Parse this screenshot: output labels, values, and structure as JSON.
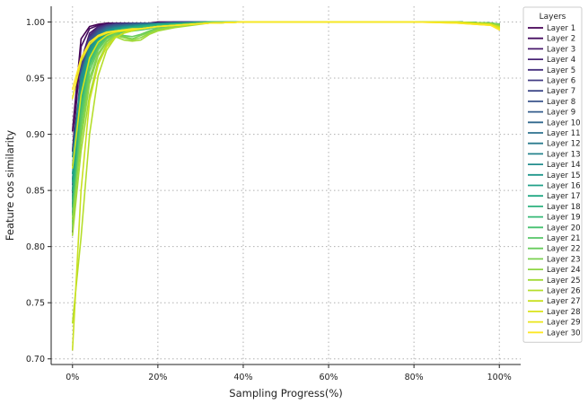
{
  "chart_data": {
    "type": "line",
    "title": "",
    "xlabel": "Sampling Progress(%)",
    "ylabel": "Feature cos similarity",
    "xlim": [
      -5,
      105
    ],
    "ylim": [
      0.695,
      1.014
    ],
    "grid": true,
    "legend_title": "Layers",
    "legend_position": "top-right, outside",
    "x_ticks": [
      0,
      20,
      40,
      60,
      80,
      100
    ],
    "x_tick_labels": [
      "0%",
      "20%",
      "40%",
      "60%",
      "80%",
      "100%"
    ],
    "y_ticks": [
      0.7,
      0.75,
      0.8,
      0.85,
      0.9,
      0.95,
      1.0
    ],
    "y_tick_labels": [
      "0.70",
      "0.75",
      "0.80",
      "0.85",
      "0.90",
      "0.95",
      "1.00"
    ],
    "x": [
      0,
      2,
      4,
      6,
      8,
      10,
      12,
      14,
      16,
      18,
      20,
      24,
      28,
      32,
      40,
      50,
      60,
      70,
      80,
      90,
      98,
      100
    ],
    "series": [
      {
        "name": "Layer 1",
        "color": "#440154",
        "values": [
          0.903,
          0.985,
          0.996,
          0.998,
          0.999,
          0.999,
          0.999,
          0.999,
          0.999,
          0.999,
          1.0,
          1.0,
          1.0,
          1.0,
          1.0,
          1.0,
          1.0,
          1.0,
          1.0,
          1.0,
          0.999,
          0.998
        ]
      },
      {
        "name": "Layer 2",
        "color": "#470e61",
        "values": [
          0.885,
          0.978,
          0.994,
          0.997,
          0.998,
          0.999,
          0.999,
          0.999,
          0.999,
          0.999,
          1.0,
          1.0,
          1.0,
          1.0,
          1.0,
          1.0,
          1.0,
          1.0,
          1.0,
          1.0,
          0.999,
          0.998
        ]
      },
      {
        "name": "Layer 3",
        "color": "#481a6c",
        "values": [
          0.848,
          0.965,
          0.99,
          0.996,
          0.998,
          0.999,
          0.999,
          0.999,
          0.999,
          0.999,
          0.999,
          1.0,
          1.0,
          1.0,
          1.0,
          1.0,
          1.0,
          1.0,
          1.0,
          1.0,
          0.999,
          0.998
        ]
      },
      {
        "name": "Layer 4",
        "color": "#482576",
        "values": [
          0.813,
          0.955,
          0.988,
          0.995,
          0.998,
          0.999,
          0.999,
          0.999,
          0.999,
          0.999,
          0.999,
          1.0,
          1.0,
          1.0,
          1.0,
          1.0,
          1.0,
          1.0,
          1.0,
          1.0,
          0.999,
          0.997
        ]
      },
      {
        "name": "Layer 5",
        "color": "#46307e",
        "values": [
          0.835,
          0.96,
          0.987,
          0.995,
          0.997,
          0.998,
          0.999,
          0.999,
          0.999,
          0.999,
          0.999,
          1.0,
          1.0,
          1.0,
          1.0,
          1.0,
          1.0,
          1.0,
          1.0,
          1.0,
          0.999,
          0.998
        ]
      },
      {
        "name": "Layer 6",
        "color": "#433d84",
        "values": [
          0.842,
          0.962,
          0.986,
          0.994,
          0.997,
          0.998,
          0.998,
          0.999,
          0.999,
          0.999,
          0.999,
          1.0,
          1.0,
          1.0,
          1.0,
          1.0,
          1.0,
          1.0,
          1.0,
          1.0,
          0.999,
          0.998
        ]
      },
      {
        "name": "Layer 7",
        "color": "#3f4889",
        "values": [
          0.85,
          0.958,
          0.985,
          0.993,
          0.996,
          0.998,
          0.998,
          0.999,
          0.999,
          0.999,
          0.999,
          1.0,
          1.0,
          1.0,
          1.0,
          1.0,
          1.0,
          1.0,
          1.0,
          1.0,
          0.999,
          0.998
        ]
      },
      {
        "name": "Layer 8",
        "color": "#3a538b",
        "values": [
          0.855,
          0.955,
          0.984,
          0.992,
          0.996,
          0.997,
          0.998,
          0.998,
          0.999,
          0.999,
          0.999,
          0.999,
          1.0,
          1.0,
          1.0,
          1.0,
          1.0,
          1.0,
          1.0,
          1.0,
          0.999,
          0.998
        ]
      },
      {
        "name": "Layer 9",
        "color": "#355e8d",
        "values": [
          0.86,
          0.952,
          0.982,
          0.991,
          0.995,
          0.997,
          0.997,
          0.998,
          0.998,
          0.999,
          0.999,
          0.999,
          1.0,
          1.0,
          1.0,
          1.0,
          1.0,
          1.0,
          1.0,
          1.0,
          0.999,
          0.998
        ]
      },
      {
        "name": "Layer 10",
        "color": "#31688e",
        "values": [
          0.845,
          0.948,
          0.98,
          0.99,
          0.995,
          0.996,
          0.997,
          0.998,
          0.998,
          0.998,
          0.999,
          0.999,
          1.0,
          1.0,
          1.0,
          1.0,
          1.0,
          1.0,
          1.0,
          1.0,
          0.999,
          0.998
        ]
      },
      {
        "name": "Layer 11",
        "color": "#2d718e",
        "values": [
          0.838,
          0.945,
          0.978,
          0.989,
          0.994,
          0.996,
          0.997,
          0.997,
          0.998,
          0.998,
          0.999,
          0.999,
          1.0,
          1.0,
          1.0,
          1.0,
          1.0,
          1.0,
          1.0,
          1.0,
          0.999,
          0.998
        ]
      },
      {
        "name": "Layer 12",
        "color": "#2a7b8e",
        "values": [
          0.83,
          0.942,
          0.976,
          0.988,
          0.993,
          0.995,
          0.996,
          0.997,
          0.998,
          0.998,
          0.998,
          0.999,
          0.999,
          1.0,
          1.0,
          1.0,
          1.0,
          1.0,
          1.0,
          1.0,
          0.999,
          0.998
        ]
      },
      {
        "name": "Layer 13",
        "color": "#26848e",
        "values": [
          0.872,
          0.95,
          0.978,
          0.988,
          0.993,
          0.995,
          0.996,
          0.997,
          0.997,
          0.998,
          0.998,
          0.999,
          0.999,
          1.0,
          1.0,
          1.0,
          1.0,
          1.0,
          1.0,
          1.0,
          0.999,
          0.998
        ]
      },
      {
        "name": "Layer 14",
        "color": "#238d8d",
        "values": [
          0.88,
          0.952,
          0.977,
          0.987,
          0.992,
          0.994,
          0.996,
          0.996,
          0.997,
          0.998,
          0.998,
          0.999,
          0.999,
          1.0,
          1.0,
          1.0,
          1.0,
          1.0,
          1.0,
          1.0,
          0.999,
          0.998
        ]
      },
      {
        "name": "Layer 15",
        "color": "#20978c",
        "values": [
          0.865,
          0.945,
          0.974,
          0.986,
          0.992,
          0.994,
          0.995,
          0.996,
          0.997,
          0.997,
          0.998,
          0.999,
          0.999,
          1.0,
          1.0,
          1.0,
          1.0,
          1.0,
          1.0,
          1.0,
          0.999,
          0.998
        ]
      },
      {
        "name": "Layer 16",
        "color": "#1fa088",
        "values": [
          0.858,
          0.94,
          0.972,
          0.985,
          0.991,
          0.993,
          0.995,
          0.996,
          0.997,
          0.997,
          0.998,
          0.998,
          0.999,
          1.0,
          1.0,
          1.0,
          1.0,
          1.0,
          1.0,
          1.0,
          0.999,
          0.998
        ]
      },
      {
        "name": "Layer 17",
        "color": "#22a884",
        "values": [
          0.85,
          0.935,
          0.97,
          0.984,
          0.99,
          0.993,
          0.994,
          0.995,
          0.996,
          0.997,
          0.998,
          0.998,
          0.999,
          1.0,
          1.0,
          1.0,
          1.0,
          1.0,
          1.0,
          1.0,
          0.999,
          0.998
        ]
      },
      {
        "name": "Layer 18",
        "color": "#2bb17e",
        "values": [
          0.842,
          0.93,
          0.968,
          0.983,
          0.989,
          0.992,
          0.994,
          0.995,
          0.996,
          0.997,
          0.997,
          0.998,
          0.999,
          1.0,
          1.0,
          1.0,
          1.0,
          1.0,
          1.0,
          1.0,
          0.999,
          0.998
        ]
      },
      {
        "name": "Layer 19",
        "color": "#37b977",
        "values": [
          0.835,
          0.925,
          0.965,
          0.981,
          0.988,
          0.991,
          0.993,
          0.994,
          0.995,
          0.996,
          0.997,
          0.998,
          0.999,
          1.0,
          1.0,
          1.0,
          1.0,
          1.0,
          1.0,
          1.0,
          0.999,
          0.998
        ]
      },
      {
        "name": "Layer 20",
        "color": "#46c06f",
        "values": [
          0.828,
          0.92,
          0.962,
          0.979,
          0.987,
          0.99,
          0.992,
          0.993,
          0.994,
          0.995,
          0.996,
          0.998,
          0.999,
          1.0,
          1.0,
          1.0,
          1.0,
          1.0,
          1.0,
          1.0,
          0.999,
          0.998
        ]
      },
      {
        "name": "Layer 21",
        "color": "#56c667",
        "values": [
          0.822,
          0.915,
          0.96,
          0.977,
          0.986,
          0.989,
          0.991,
          0.992,
          0.993,
          0.994,
          0.996,
          0.997,
          0.999,
          1.0,
          1.0,
          1.0,
          1.0,
          1.0,
          1.0,
          1.0,
          0.999,
          0.998
        ]
      },
      {
        "name": "Layer 22",
        "color": "#68cc5c",
        "values": [
          0.815,
          0.908,
          0.956,
          0.975,
          0.985,
          0.99,
          0.988,
          0.987,
          0.989,
          0.992,
          0.995,
          0.997,
          0.998,
          0.999,
          1.0,
          1.0,
          1.0,
          1.0,
          1.0,
          1.0,
          0.999,
          0.998
        ]
      },
      {
        "name": "Layer 23",
        "color": "#7ad151",
        "values": [
          0.82,
          0.9,
          0.95,
          0.972,
          0.983,
          0.989,
          0.987,
          0.985,
          0.988,
          0.991,
          0.994,
          0.996,
          0.998,
          0.999,
          1.0,
          1.0,
          1.0,
          1.0,
          1.0,
          1.0,
          0.999,
          0.998
        ]
      },
      {
        "name": "Layer 24",
        "color": "#8ed645",
        "values": [
          0.825,
          0.895,
          0.945,
          0.97,
          0.982,
          0.988,
          0.986,
          0.984,
          0.986,
          0.99,
          0.993,
          0.996,
          0.998,
          0.999,
          1.0,
          1.0,
          1.0,
          1.0,
          1.0,
          1.0,
          0.999,
          0.997
        ]
      },
      {
        "name": "Layer 25",
        "color": "#a2da37",
        "values": [
          0.81,
          0.885,
          0.935,
          0.965,
          0.98,
          0.987,
          0.984,
          0.983,
          0.984,
          0.989,
          0.992,
          0.995,
          0.997,
          0.999,
          1.0,
          1.0,
          1.0,
          1.0,
          1.0,
          1.0,
          0.998,
          0.996
        ]
      },
      {
        "name": "Layer 26",
        "color": "#b5de2b",
        "values": [
          0.732,
          0.808,
          0.9,
          0.952,
          0.975,
          0.986,
          0.99,
          0.992,
          0.994,
          0.995,
          0.996,
          0.997,
          0.998,
          0.999,
          1.0,
          1.0,
          1.0,
          1.0,
          1.0,
          1.0,
          0.998,
          0.996
        ]
      },
      {
        "name": "Layer 27",
        "color": "#c8e020",
        "values": [
          0.708,
          0.85,
          0.93,
          0.962,
          0.978,
          0.986,
          0.99,
          0.993,
          0.994,
          0.995,
          0.996,
          0.997,
          0.998,
          0.999,
          1.0,
          1.0,
          1.0,
          1.0,
          1.0,
          1.0,
          0.998,
          0.995
        ]
      },
      {
        "name": "Layer 28",
        "color": "#dae319",
        "values": [
          0.87,
          0.935,
          0.968,
          0.982,
          0.988,
          0.991,
          0.992,
          0.993,
          0.994,
          0.995,
          0.996,
          0.997,
          0.998,
          0.999,
          1.0,
          1.0,
          1.0,
          1.0,
          1.0,
          1.0,
          0.998,
          0.995
        ]
      },
      {
        "name": "Layer 29",
        "color": "#eae51a",
        "values": [
          0.932,
          0.965,
          0.98,
          0.987,
          0.99,
          0.992,
          0.993,
          0.993,
          0.994,
          0.995,
          0.996,
          0.997,
          0.998,
          0.999,
          1.0,
          1.0,
          1.0,
          1.0,
          1.0,
          0.999,
          0.997,
          0.994
        ]
      },
      {
        "name": "Layer 30",
        "color": "#fde725",
        "values": [
          0.94,
          0.968,
          0.982,
          0.988,
          0.991,
          0.992,
          0.993,
          0.994,
          0.994,
          0.995,
          0.996,
          0.997,
          0.998,
          0.999,
          1.0,
          1.0,
          1.0,
          1.0,
          1.0,
          0.999,
          0.997,
          0.993
        ]
      }
    ]
  }
}
